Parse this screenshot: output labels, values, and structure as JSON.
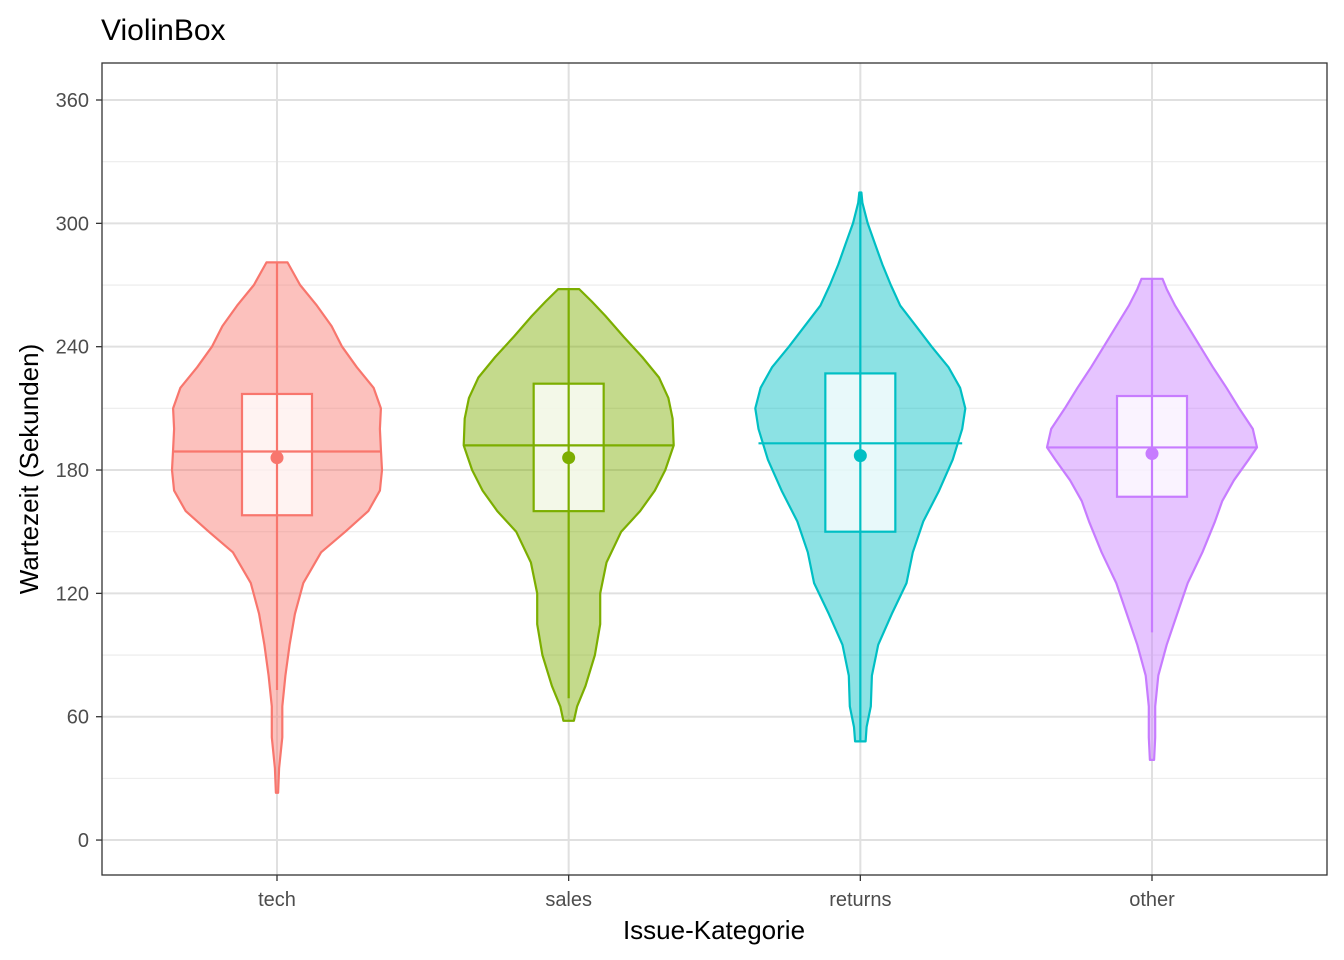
{
  "chart_data": {
    "type": "violin",
    "title": "ViolinBox",
    "xlabel": "Issue-Kategorie",
    "ylabel": "Wartezeit (Sekunden)",
    "categories": [
      "tech",
      "sales",
      "returns",
      "other"
    ],
    "ylim": [
      -17,
      378
    ],
    "yticks": [
      0,
      60,
      120,
      180,
      240,
      300,
      360
    ],
    "grid": true,
    "colors": [
      "#F8766D",
      "#7CAE00",
      "#00BFC4",
      "#C77CFF"
    ],
    "series": [
      {
        "category": "tech",
        "min": 23,
        "max": 281,
        "whisker_low": 73,
        "whisker_high": 281,
        "q1": 158,
        "median": 189,
        "q3": 217,
        "mean": 186,
        "density": [
          [
            23,
            0.01
          ],
          [
            35,
            0.02
          ],
          [
            50,
            0.05
          ],
          [
            65,
            0.05
          ],
          [
            80,
            0.08
          ],
          [
            95,
            0.12
          ],
          [
            110,
            0.17
          ],
          [
            125,
            0.25
          ],
          [
            140,
            0.42
          ],
          [
            150,
            0.65
          ],
          [
            160,
            0.87
          ],
          [
            170,
            0.98
          ],
          [
            180,
            1.0
          ],
          [
            190,
            0.99
          ],
          [
            200,
            0.98
          ],
          [
            210,
            0.99
          ],
          [
            220,
            0.92
          ],
          [
            230,
            0.76
          ],
          [
            240,
            0.62
          ],
          [
            250,
            0.52
          ],
          [
            260,
            0.38
          ],
          [
            270,
            0.22
          ],
          [
            281,
            0.1
          ]
        ]
      },
      {
        "category": "sales",
        "min": 58,
        "max": 268,
        "whisker_low": 69,
        "whisker_high": 268,
        "q1": 160,
        "median": 192,
        "q3": 222,
        "mean": 186,
        "density": [
          [
            58,
            0.05
          ],
          [
            65,
            0.08
          ],
          [
            75,
            0.16
          ],
          [
            90,
            0.25
          ],
          [
            105,
            0.3
          ],
          [
            120,
            0.3
          ],
          [
            135,
            0.36
          ],
          [
            150,
            0.5
          ],
          [
            160,
            0.68
          ],
          [
            170,
            0.82
          ],
          [
            180,
            0.92
          ],
          [
            192,
            1.0
          ],
          [
            205,
            0.99
          ],
          [
            215,
            0.95
          ],
          [
            225,
            0.86
          ],
          [
            235,
            0.7
          ],
          [
            245,
            0.52
          ],
          [
            255,
            0.35
          ],
          [
            262,
            0.22
          ],
          [
            268,
            0.1
          ]
        ]
      },
      {
        "category": "returns",
        "min": 48,
        "max": 315,
        "whisker_low": 48,
        "whisker_high": 315,
        "q1": 150,
        "median": 193,
        "q3": 227,
        "mean": 187,
        "density": [
          [
            48,
            0.05
          ],
          [
            55,
            0.06
          ],
          [
            65,
            0.1
          ],
          [
            80,
            0.11
          ],
          [
            95,
            0.17
          ],
          [
            110,
            0.3
          ],
          [
            125,
            0.44
          ],
          [
            140,
            0.5
          ],
          [
            155,
            0.6
          ],
          [
            170,
            0.75
          ],
          [
            185,
            0.88
          ],
          [
            200,
            0.97
          ],
          [
            210,
            1.0
          ],
          [
            220,
            0.95
          ],
          [
            230,
            0.84
          ],
          [
            240,
            0.68
          ],
          [
            250,
            0.53
          ],
          [
            260,
            0.38
          ],
          [
            270,
            0.29
          ],
          [
            280,
            0.21
          ],
          [
            290,
            0.14
          ],
          [
            300,
            0.07
          ],
          [
            310,
            0.02
          ],
          [
            315,
            0.01
          ]
        ]
      },
      {
        "category": "other",
        "min": 39,
        "max": 273,
        "whisker_low": 101,
        "whisker_high": 273,
        "q1": 167,
        "median": 191,
        "q3": 216,
        "mean": 188,
        "density": [
          [
            39,
            0.02
          ],
          [
            50,
            0.03
          ],
          [
            65,
            0.03
          ],
          [
            80,
            0.06
          ],
          [
            95,
            0.14
          ],
          [
            110,
            0.24
          ],
          [
            125,
            0.34
          ],
          [
            140,
            0.48
          ],
          [
            155,
            0.6
          ],
          [
            165,
            0.67
          ],
          [
            175,
            0.78
          ],
          [
            185,
            0.92
          ],
          [
            191,
            1.0
          ],
          [
            200,
            0.96
          ],
          [
            210,
            0.83
          ],
          [
            220,
            0.71
          ],
          [
            230,
            0.58
          ],
          [
            240,
            0.46
          ],
          [
            250,
            0.34
          ],
          [
            260,
            0.22
          ],
          [
            268,
            0.14
          ],
          [
            273,
            0.1
          ]
        ]
      }
    ]
  }
}
